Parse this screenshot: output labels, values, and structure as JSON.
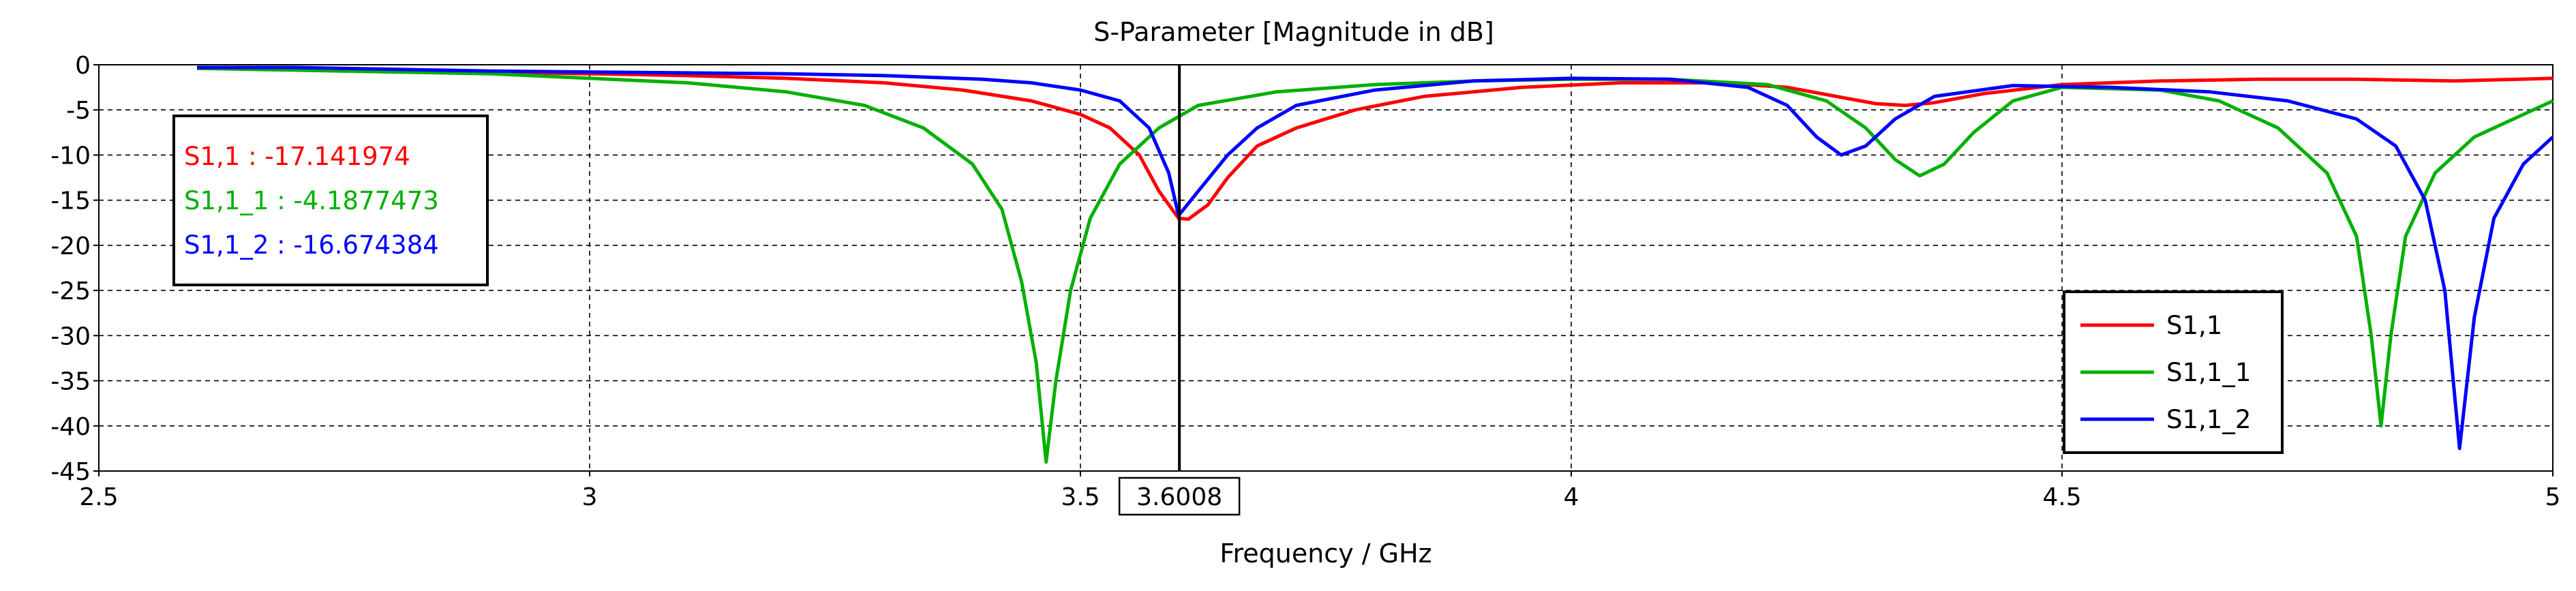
{
  "chart_data": {
    "type": "line",
    "title": "S-Parameter [Magnitude in dB]",
    "xlabel": "Frequency / GHz",
    "ylabel": "",
    "xlim": [
      2.5,
      5
    ],
    "ylim": [
      -45,
      0
    ],
    "grid": true,
    "x_ticks": [
      2.5,
      3,
      3.5,
      4,
      4.5,
      5
    ],
    "x_tick_labels": [
      "2.5",
      "3",
      "3.5",
      "4",
      "4.5",
      "5"
    ],
    "y_ticks": [
      0,
      -5,
      -10,
      -15,
      -20,
      -25,
      -30,
      -35,
      -40,
      -45
    ],
    "y_tick_labels": [
      "0",
      "-5",
      "-10",
      "-15",
      "-20",
      "-25",
      "-30",
      "-35",
      "-40",
      "-45"
    ],
    "marker": {
      "x": 3.6008,
      "label": "3.6008",
      "readouts": [
        {
          "text": "S1,1 : -17.141974",
          "color": "#ff0000"
        },
        {
          "text": "S1,1_1 : -4.1877473",
          "color": "#00b000"
        },
        {
          "text": "S1,1_2 : -16.674384",
          "color": "#0000ff"
        }
      ]
    },
    "legend": {
      "position": "bottom-right"
    },
    "series": [
      {
        "name": "S1,1",
        "color": "#ff0000",
        "points": [
          [
            2.6,
            -0.4
          ],
          [
            2.7,
            -0.5
          ],
          [
            2.8,
            -0.6
          ],
          [
            2.9,
            -0.8
          ],
          [
            3.0,
            -1.0
          ],
          [
            3.1,
            -1.2
          ],
          [
            3.2,
            -1.5
          ],
          [
            3.3,
            -2.0
          ],
          [
            3.38,
            -2.8
          ],
          [
            3.45,
            -4.0
          ],
          [
            3.5,
            -5.5
          ],
          [
            3.53,
            -7.0
          ],
          [
            3.56,
            -10.0
          ],
          [
            3.58,
            -14.0
          ],
          [
            3.6,
            -17.0
          ],
          [
            3.61,
            -17.1
          ],
          [
            3.63,
            -15.5
          ],
          [
            3.65,
            -12.5
          ],
          [
            3.68,
            -9.0
          ],
          [
            3.72,
            -7.0
          ],
          [
            3.78,
            -5.0
          ],
          [
            3.85,
            -3.5
          ],
          [
            3.95,
            -2.5
          ],
          [
            4.05,
            -2.0
          ],
          [
            4.15,
            -2.0
          ],
          [
            4.22,
            -2.5
          ],
          [
            4.27,
            -3.5
          ],
          [
            4.31,
            -4.3
          ],
          [
            4.34,
            -4.5
          ],
          [
            4.37,
            -4.2
          ],
          [
            4.42,
            -3.2
          ],
          [
            4.5,
            -2.2
          ],
          [
            4.6,
            -1.8
          ],
          [
            4.7,
            -1.6
          ],
          [
            4.8,
            -1.6
          ],
          [
            4.9,
            -1.8
          ],
          [
            5.0,
            -1.5
          ]
        ]
      },
      {
        "name": "S1,1_1",
        "color": "#00b000",
        "points": [
          [
            2.6,
            -0.4
          ],
          [
            2.7,
            -0.6
          ],
          [
            2.8,
            -0.8
          ],
          [
            2.9,
            -1.0
          ],
          [
            3.0,
            -1.5
          ],
          [
            3.1,
            -2.0
          ],
          [
            3.2,
            -3.0
          ],
          [
            3.28,
            -4.5
          ],
          [
            3.34,
            -7.0
          ],
          [
            3.39,
            -11.0
          ],
          [
            3.42,
            -16.0
          ],
          [
            3.44,
            -24.0
          ],
          [
            3.455,
            -33.0
          ],
          [
            3.465,
            -44.0
          ],
          [
            3.475,
            -35.0
          ],
          [
            3.49,
            -25.0
          ],
          [
            3.51,
            -17.0
          ],
          [
            3.54,
            -11.0
          ],
          [
            3.58,
            -7.0
          ],
          [
            3.62,
            -4.5
          ],
          [
            3.7,
            -3.0
          ],
          [
            3.8,
            -2.2
          ],
          [
            3.9,
            -1.8
          ],
          [
            4.0,
            -1.6
          ],
          [
            4.1,
            -1.6
          ],
          [
            4.2,
            -2.2
          ],
          [
            4.26,
            -4.0
          ],
          [
            4.3,
            -7.0
          ],
          [
            4.33,
            -10.5
          ],
          [
            4.355,
            -12.3
          ],
          [
            4.38,
            -11.0
          ],
          [
            4.41,
            -7.5
          ],
          [
            4.45,
            -4.0
          ],
          [
            4.5,
            -2.5
          ],
          [
            4.6,
            -2.8
          ],
          [
            4.66,
            -4.0
          ],
          [
            4.72,
            -7.0
          ],
          [
            4.77,
            -12.0
          ],
          [
            4.8,
            -19.0
          ],
          [
            4.815,
            -30.0
          ],
          [
            4.825,
            -40.0
          ],
          [
            4.835,
            -30.0
          ],
          [
            4.85,
            -19.0
          ],
          [
            4.88,
            -12.0
          ],
          [
            4.92,
            -8.0
          ],
          [
            4.96,
            -6.0
          ],
          [
            5.0,
            -4.0
          ]
        ]
      },
      {
        "name": "S1,1_2",
        "color": "#0000ff",
        "points": [
          [
            2.6,
            -0.3
          ],
          [
            2.7,
            -0.3
          ],
          [
            2.8,
            -0.5
          ],
          [
            2.9,
            -0.7
          ],
          [
            3.0,
            -0.8
          ],
          [
            3.1,
            -0.9
          ],
          [
            3.2,
            -1.0
          ],
          [
            3.3,
            -1.2
          ],
          [
            3.4,
            -1.6
          ],
          [
            3.45,
            -2.0
          ],
          [
            3.5,
            -2.8
          ],
          [
            3.54,
            -4.0
          ],
          [
            3.57,
            -7.0
          ],
          [
            3.59,
            -12.0
          ],
          [
            3.6,
            -16.7
          ],
          [
            3.62,
            -14.0
          ],
          [
            3.65,
            -10.0
          ],
          [
            3.68,
            -7.0
          ],
          [
            3.72,
            -4.5
          ],
          [
            3.8,
            -2.8
          ],
          [
            3.9,
            -1.8
          ],
          [
            4.0,
            -1.5
          ],
          [
            4.1,
            -1.6
          ],
          [
            4.18,
            -2.5
          ],
          [
            4.22,
            -4.5
          ],
          [
            4.25,
            -8.0
          ],
          [
            4.275,
            -10.0
          ],
          [
            4.3,
            -9.0
          ],
          [
            4.33,
            -6.0
          ],
          [
            4.37,
            -3.5
          ],
          [
            4.45,
            -2.3
          ],
          [
            4.55,
            -2.5
          ],
          [
            4.65,
            -3.0
          ],
          [
            4.73,
            -4.0
          ],
          [
            4.8,
            -6.0
          ],
          [
            4.84,
            -9.0
          ],
          [
            4.87,
            -15.0
          ],
          [
            4.89,
            -25.0
          ],
          [
            4.905,
            -42.5
          ],
          [
            4.92,
            -28.0
          ],
          [
            4.94,
            -17.0
          ],
          [
            4.97,
            -11.0
          ],
          [
            5.0,
            -8.0
          ]
        ]
      }
    ]
  }
}
